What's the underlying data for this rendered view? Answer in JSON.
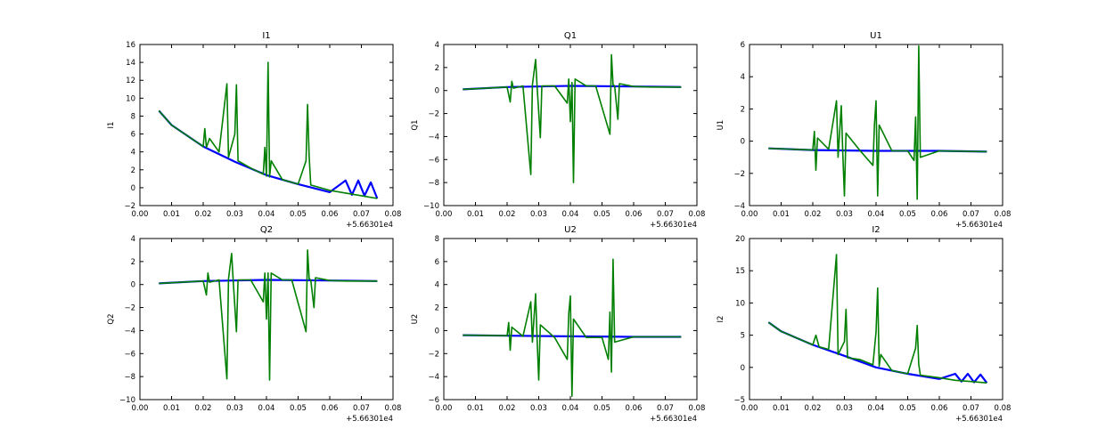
{
  "figure": {
    "background": "#ffffff",
    "series_colors": [
      "#0000ff",
      "#007f00"
    ]
  },
  "chart_data": [
    {
      "type": "line",
      "title": "I1",
      "ylabel": "I1",
      "xlabel": "",
      "xlim": [
        0.0,
        0.08
      ],
      "ylim": [
        -2,
        16
      ],
      "xticks": [
        "0.00",
        "0.01",
        "0.02",
        "0.03",
        "0.04",
        "0.05",
        "0.06",
        "0.07",
        "0.08"
      ],
      "yticks": [
        "−2",
        "0",
        "2",
        "4",
        "6",
        "8",
        "10",
        "12",
        "14",
        "16"
      ],
      "x_offset_label": "+5.66301e4",
      "grid": false,
      "series": [
        {
          "color": "#0000ff",
          "x": [
            0.006,
            0.01,
            0.02,
            0.03,
            0.04,
            0.05,
            0.06,
            0.065,
            0.067,
            0.069,
            0.071,
            0.073,
            0.075
          ],
          "y": [
            8.6,
            7.0,
            4.6,
            2.9,
            1.4,
            0.4,
            -0.5,
            0.8,
            -0.8,
            0.8,
            -0.9,
            0.6,
            -1.2
          ]
        },
        {
          "color": "#007f00",
          "x": [
            0.006,
            0.01,
            0.02,
            0.0205,
            0.021,
            0.022,
            0.025,
            0.0275,
            0.028,
            0.03,
            0.0305,
            0.031,
            0.035,
            0.039,
            0.0395,
            0.04,
            0.0405,
            0.041,
            0.0415,
            0.045,
            0.05,
            0.0525,
            0.053,
            0.0535,
            0.054,
            0.06,
            0.065,
            0.07,
            0.075
          ],
          "y": [
            8.6,
            7.0,
            4.6,
            6.6,
            4.5,
            5.5,
            4.0,
            11.6,
            3.4,
            6.0,
            11.5,
            3.0,
            2.2,
            1.5,
            4.5,
            1.3,
            14.0,
            1.2,
            3.0,
            0.9,
            0.4,
            3.0,
            9.3,
            3.5,
            0.3,
            -0.3,
            -0.6,
            -0.9,
            -1.2
          ]
        }
      ]
    },
    {
      "type": "line",
      "title": "Q1",
      "ylabel": "Q1",
      "xlabel": "",
      "xlim": [
        0.0,
        0.08
      ],
      "ylim": [
        -10,
        4
      ],
      "xticks": [
        "0.00",
        "0.01",
        "0.02",
        "0.03",
        "0.04",
        "0.05",
        "0.06",
        "0.07",
        "0.08"
      ],
      "yticks": [
        "−10",
        "−8",
        "−6",
        "−4",
        "−2",
        "0",
        "2",
        "4"
      ],
      "x_offset_label": "+5.66301e4",
      "grid": false,
      "series": [
        {
          "color": "#0000ff",
          "x": [
            0.006,
            0.02,
            0.04,
            0.06,
            0.075
          ],
          "y": [
            0.1,
            0.3,
            0.4,
            0.35,
            0.3
          ]
        },
        {
          "color": "#007f00",
          "x": [
            0.006,
            0.02,
            0.021,
            0.0215,
            0.022,
            0.025,
            0.0275,
            0.028,
            0.029,
            0.0295,
            0.0305,
            0.031,
            0.035,
            0.039,
            0.0395,
            0.04,
            0.0405,
            0.041,
            0.0415,
            0.045,
            0.048,
            0.0525,
            0.053,
            0.0535,
            0.054,
            0.055,
            0.0555,
            0.06,
            0.065,
            0.075
          ],
          "y": [
            0.1,
            0.3,
            -1.0,
            0.8,
            0.2,
            0.4,
            -7.3,
            0.5,
            2.7,
            0.3,
            -4.1,
            0.4,
            0.4,
            -1.1,
            1.0,
            -2.7,
            0.7,
            -8.0,
            1.0,
            0.4,
            0.4,
            -3.8,
            3.1,
            0.5,
            0.4,
            -2.5,
            0.6,
            0.35,
            0.3,
            0.3
          ]
        }
      ]
    },
    {
      "type": "line",
      "title": "U1",
      "ylabel": "U1",
      "xlabel": "",
      "xlim": [
        0.0,
        0.08
      ],
      "ylim": [
        -4,
        6
      ],
      "xticks": [
        "0.00",
        "0.01",
        "0.02",
        "0.03",
        "0.04",
        "0.05",
        "0.06",
        "0.07",
        "0.08"
      ],
      "yticks": [
        "−4",
        "−2",
        "0",
        "2",
        "4",
        "6"
      ],
      "x_offset_label": "+5.66301e4",
      "grid": false,
      "series": [
        {
          "color": "#0000ff",
          "x": [
            0.006,
            0.02,
            0.04,
            0.06,
            0.075
          ],
          "y": [
            -0.45,
            -0.55,
            -0.6,
            -0.6,
            -0.65
          ]
        },
        {
          "color": "#007f00",
          "x": [
            0.006,
            0.02,
            0.0205,
            0.021,
            0.0215,
            0.025,
            0.0275,
            0.028,
            0.029,
            0.0295,
            0.03,
            0.0305,
            0.035,
            0.039,
            0.0395,
            0.04,
            0.0405,
            0.041,
            0.045,
            0.05,
            0.052,
            0.0525,
            0.053,
            0.0535,
            0.054,
            0.06,
            0.075
          ],
          "y": [
            -0.45,
            -0.55,
            0.6,
            -1.8,
            0.2,
            -0.5,
            2.5,
            -1.0,
            2.2,
            -0.8,
            -3.4,
            0.5,
            -0.6,
            -1.5,
            1.0,
            2.5,
            -3.4,
            1.0,
            -0.6,
            -0.6,
            -1.2,
            1.5,
            -3.6,
            5.9,
            -1.0,
            -0.6,
            -0.65
          ]
        }
      ]
    },
    {
      "type": "line",
      "title": "Q2",
      "ylabel": "Q2",
      "xlabel": "",
      "xlim": [
        0.0,
        0.08
      ],
      "ylim": [
        -10,
        4
      ],
      "xticks": [
        "0.00",
        "0.01",
        "0.02",
        "0.03",
        "0.04",
        "0.05",
        "0.06",
        "0.07",
        "0.08"
      ],
      "yticks": [
        "−10",
        "−8",
        "−6",
        "−4",
        "−2",
        "0",
        "2",
        "4"
      ],
      "x_offset_label": "+5.66301e4",
      "grid": false,
      "series": [
        {
          "color": "#0000ff",
          "x": [
            0.006,
            0.02,
            0.04,
            0.06,
            0.075
          ],
          "y": [
            0.1,
            0.3,
            0.4,
            0.35,
            0.3
          ]
        },
        {
          "color": "#007f00",
          "x": [
            0.006,
            0.02,
            0.021,
            0.0215,
            0.022,
            0.025,
            0.0275,
            0.028,
            0.029,
            0.0295,
            0.0305,
            0.031,
            0.035,
            0.039,
            0.0395,
            0.04,
            0.0405,
            0.041,
            0.0415,
            0.045,
            0.048,
            0.0525,
            0.053,
            0.0535,
            0.054,
            0.055,
            0.0555,
            0.06,
            0.065,
            0.075
          ],
          "y": [
            0.1,
            0.3,
            -0.9,
            1.0,
            0.2,
            0.4,
            -8.2,
            0.5,
            2.7,
            0.3,
            -4.1,
            0.4,
            0.4,
            -1.5,
            1.0,
            -3.0,
            1.0,
            -8.3,
            1.0,
            0.4,
            0.4,
            -4.1,
            3.0,
            0.5,
            0.4,
            -2.0,
            0.6,
            0.35,
            0.3,
            0.3
          ]
        }
      ]
    },
    {
      "type": "line",
      "title": "U2",
      "ylabel": "U2",
      "xlabel": "",
      "xlim": [
        0.0,
        0.08
      ],
      "ylim": [
        -6,
        8
      ],
      "xticks": [
        "0.00",
        "0.01",
        "0.02",
        "0.03",
        "0.04",
        "0.05",
        "0.06",
        "0.07",
        "0.08"
      ],
      "yticks": [
        "−6",
        "−4",
        "−2",
        "0",
        "2",
        "4",
        "6",
        "8"
      ],
      "x_offset_label": "+5.66301e4",
      "grid": false,
      "series": [
        {
          "color": "#0000ff",
          "x": [
            0.006,
            0.02,
            0.04,
            0.06,
            0.075
          ],
          "y": [
            -0.4,
            -0.45,
            -0.5,
            -0.55,
            -0.55
          ]
        },
        {
          "color": "#007f00",
          "x": [
            0.006,
            0.02,
            0.0205,
            0.021,
            0.0215,
            0.025,
            0.0275,
            0.028,
            0.029,
            0.0295,
            0.03,
            0.0305,
            0.035,
            0.039,
            0.0395,
            0.04,
            0.0405,
            0.041,
            0.045,
            0.05,
            0.052,
            0.0525,
            0.053,
            0.0535,
            0.054,
            0.06,
            0.075
          ],
          "y": [
            -0.4,
            -0.45,
            0.7,
            -1.7,
            0.3,
            -0.5,
            2.5,
            -1.0,
            3.2,
            -0.8,
            -4.3,
            0.5,
            -0.6,
            -2.5,
            1.5,
            3.0,
            -5.7,
            1.0,
            -0.6,
            -0.6,
            -2.5,
            1.6,
            -3.6,
            6.2,
            -1.0,
            -0.55,
            -0.55
          ]
        }
      ]
    },
    {
      "type": "line",
      "title": "I2",
      "ylabel": "I2",
      "xlabel": "",
      "xlim": [
        0.0,
        0.08
      ],
      "ylim": [
        -5,
        20
      ],
      "xticks": [
        "0.00",
        "0.01",
        "0.02",
        "0.03",
        "0.04",
        "0.05",
        "0.06",
        "0.07",
        "0.08"
      ],
      "yticks": [
        "−5",
        "0",
        "5",
        "10",
        "15",
        "20"
      ],
      "x_offset_label": "+5.66301e4",
      "grid": false,
      "series": [
        {
          "color": "#0000ff",
          "x": [
            0.006,
            0.01,
            0.02,
            0.03,
            0.04,
            0.05,
            0.06,
            0.065,
            0.067,
            0.069,
            0.071,
            0.073,
            0.075
          ],
          "y": [
            7.0,
            5.6,
            3.5,
            1.8,
            0.0,
            -1.0,
            -1.8,
            -1.0,
            -2.2,
            -1.0,
            -2.3,
            -1.1,
            -2.4
          ]
        },
        {
          "color": "#007f00",
          "x": [
            0.006,
            0.01,
            0.02,
            0.021,
            0.022,
            0.025,
            0.0275,
            0.028,
            0.03,
            0.0305,
            0.031,
            0.035,
            0.039,
            0.04,
            0.0405,
            0.041,
            0.0415,
            0.045,
            0.05,
            0.0525,
            0.053,
            0.0535,
            0.054,
            0.06,
            0.065,
            0.07,
            0.075
          ],
          "y": [
            7.0,
            5.6,
            3.5,
            5.0,
            3.2,
            2.8,
            17.5,
            2.0,
            4.0,
            9.0,
            1.5,
            1.2,
            0.4,
            5.5,
            12.3,
            0.2,
            2.0,
            -0.5,
            -1.0,
            3.0,
            6.5,
            0.5,
            -1.2,
            -1.6,
            -2.0,
            -2.2,
            -2.4
          ]
        }
      ]
    }
  ]
}
